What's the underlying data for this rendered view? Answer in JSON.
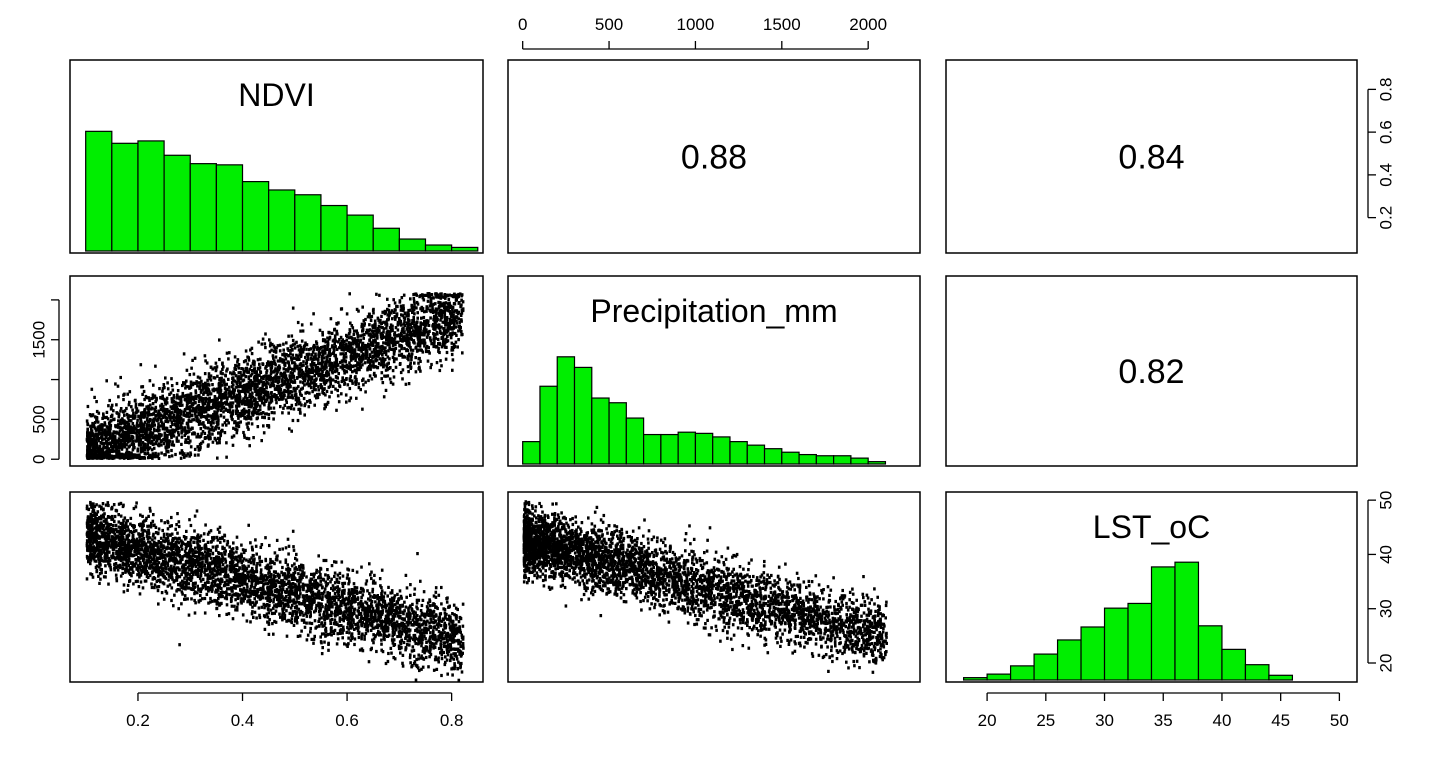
{
  "chart_data": {
    "type": "scatter",
    "layout": "pairs",
    "variables": [
      "NDVI",
      "Precipitation_mm",
      "LST_oC"
    ],
    "histogram_color": "#00ee00",
    "point_color": "#000000",
    "correlations": [
      {
        "row": 0,
        "col": 1,
        "label": "0.88",
        "value": 0.88
      },
      {
        "row": 0,
        "col": 2,
        "label": "0.84",
        "value": 0.84
      },
      {
        "row": 1,
        "col": 2,
        "label": "0.82",
        "value": 0.82
      }
    ],
    "axes": {
      "NDVI": {
        "range": [
          0.07,
          0.86
        ],
        "ticks": [
          0.2,
          0.4,
          0.6,
          0.8
        ],
        "tick_labels": [
          "0.2",
          "0.4",
          "0.6",
          "0.8"
        ]
      },
      "Precipitation_mm": {
        "range": [
          -85,
          2300
        ],
        "ticks": [
          0,
          500,
          1000,
          1500,
          2000
        ],
        "tick_labels": [
          "0",
          "500",
          "1000",
          "1500",
          "2000"
        ],
        "left_ticks": [
          0,
          500,
          1000,
          1500,
          2000
        ],
        "left_tick_labels": [
          "0",
          "500",
          "",
          "1500",
          ""
        ]
      },
      "LST_oC": {
        "range": [
          16.5,
          51.5
        ],
        "ticks": [
          20,
          25,
          30,
          35,
          40,
          45,
          50
        ],
        "tick_labels": [
          "20",
          "25",
          "30",
          "35",
          "40",
          "45",
          "50"
        ],
        "right_ticks": [
          20,
          30,
          40,
          50
        ],
        "right_tick_labels": [
          "20",
          "30",
          "40",
          "50"
        ]
      }
    },
    "right_axis_top": {
      "range": [
        0.1,
        0.9
      ],
      "ticks": [
        0.2,
        0.4,
        0.6,
        0.8
      ],
      "tick_labels": [
        "0.2",
        "0.4",
        "0.6",
        "0.8"
      ]
    },
    "histograms": {
      "NDVI": {
        "breaks": [
          0.1,
          0.15,
          0.2,
          0.25,
          0.3,
          0.35,
          0.4,
          0.45,
          0.5,
          0.55,
          0.6,
          0.65,
          0.7,
          0.75,
          0.8,
          0.85
        ],
        "heights": [
          1.0,
          0.9,
          0.92,
          0.8,
          0.73,
          0.72,
          0.58,
          0.51,
          0.47,
          0.38,
          0.3,
          0.19,
          0.1,
          0.05,
          0.03
        ]
      },
      "Precipitation_mm": {
        "breaks": [
          0,
          100,
          200,
          300,
          400,
          500,
          600,
          700,
          800,
          900,
          1000,
          1100,
          1200,
          1300,
          1400,
          1500,
          1600,
          1700,
          1800,
          1900,
          2000,
          2100
        ],
        "heights": [
          0.19,
          0.66,
          0.91,
          0.82,
          0.56,
          0.52,
          0.39,
          0.25,
          0.25,
          0.27,
          0.26,
          0.23,
          0.19,
          0.16,
          0.13,
          0.1,
          0.08,
          0.07,
          0.07,
          0.05,
          0.02
        ]
      },
      "LST_oC": {
        "breaks": [
          18,
          20,
          22,
          24,
          26,
          28,
          30,
          32,
          34,
          36,
          38,
          40,
          42,
          44,
          46,
          48
        ],
        "heights": [
          0.02,
          0.05,
          0.12,
          0.22,
          0.34,
          0.45,
          0.61,
          0.65,
          0.96,
          1.0,
          0.46,
          0.26,
          0.13,
          0.04,
          0.0
        ]
      }
    },
    "scatter_trends": {
      "Precipitation_mm_vs_NDVI": {
        "x_range": [
          0.1,
          0.82
        ],
        "intercept": -150,
        "slope": 2450,
        "spread": 240,
        "y_clip": [
          30,
          2100
        ]
      },
      "LST_oC_vs_NDVI": {
        "x_range": [
          0.1,
          0.82
        ],
        "intercept": 46.5,
        "slope": -27,
        "spread": 3.2,
        "y_clip": [
          17,
          50
        ]
      },
      "LST_oC_vs_Precipitation_mm": {
        "x_range": [
          0,
          2100
        ],
        "intercept": 43,
        "slope": -0.0085,
        "spread": 3.0,
        "y_clip": [
          18,
          50
        ]
      }
    }
  }
}
